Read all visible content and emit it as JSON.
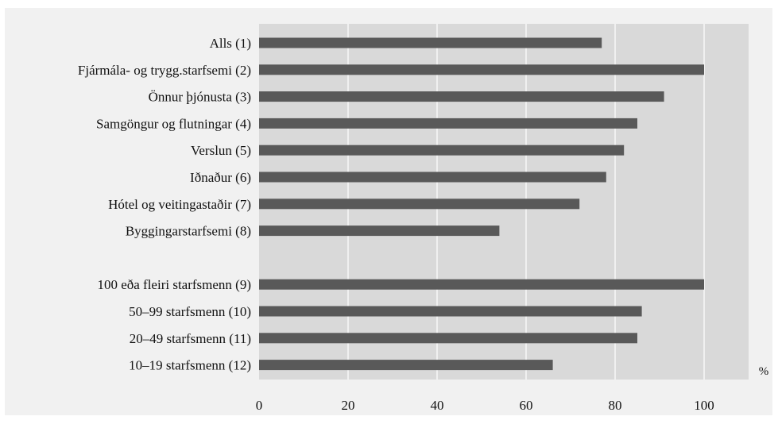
{
  "chart_data": {
    "type": "bar",
    "orientation": "horizontal",
    "title": "",
    "xlabel": "",
    "ylabel": "",
    "unit": "%",
    "xlim": [
      0,
      110
    ],
    "xticks": [
      0,
      20,
      40,
      60,
      80,
      100
    ],
    "grid": true,
    "categories": [
      "Alls (1)",
      "Fjármála- og trygg.starfsemi (2)",
      "Önnur þjónusta (3)",
      "Samgöngur og flutningar (4)",
      "Verslun (5)",
      "Iðnaður (6)",
      "Hótel og veitingastaðir (7)",
      "Byggingarstarfsemi (8)",
      "",
      "100 eða fleiri starfsmenn (9)",
      "50–99 starfsmenn (10)",
      "20–49 starfsmenn (11)",
      "10–19 starfsmenn (12)"
    ],
    "values": [
      77,
      100,
      91,
      85,
      82,
      78,
      72,
      54,
      null,
      100,
      86,
      85,
      66
    ],
    "colors": {
      "bar": "#595959",
      "plot_background": "#d9d9d9",
      "outer_background": "#f1f1f1",
      "gridline": "#ffffff"
    }
  }
}
